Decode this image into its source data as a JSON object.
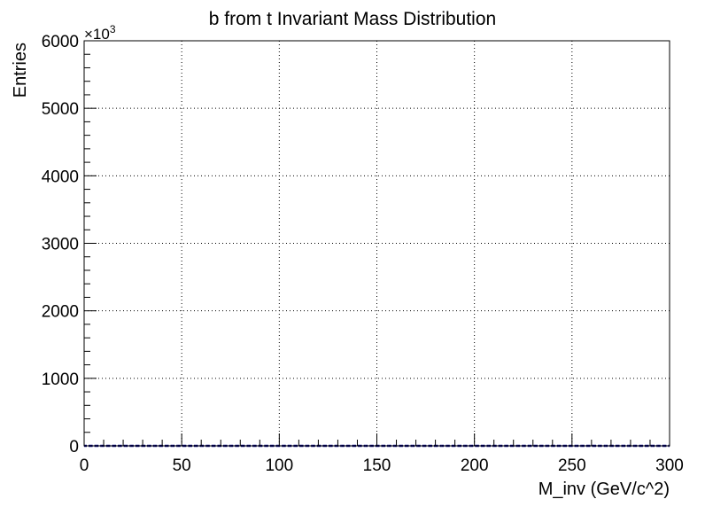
{
  "chart_data": {
    "type": "bar",
    "title": "b from t Invariant Mass Distribution",
    "xlabel": "M_inv (GeV/c^2)",
    "ylabel": "Entries",
    "y_multiplier_base": "×10",
    "y_multiplier_exponent": "3",
    "xlim": [
      0,
      300
    ],
    "ylim": [
      0,
      6000
    ],
    "x_ticks": [
      0,
      50,
      100,
      150,
      200,
      250,
      300
    ],
    "y_ticks": [
      0,
      1000,
      2000,
      3000,
      4000,
      5000,
      6000
    ],
    "x_tick_labels": [
      "0",
      "50",
      "100",
      "150",
      "200",
      "250",
      "300"
    ],
    "y_tick_labels": [
      "0",
      "1000",
      "2000",
      "3000",
      "4000",
      "5000",
      "6000"
    ],
    "grid": true,
    "bin_width": 3,
    "series": [
      {
        "color": "#000080",
        "bin_edges_start": 0,
        "values": [
          0,
          0,
          0,
          0,
          0,
          0,
          0,
          0,
          0,
          0,
          0,
          0,
          0,
          0,
          0,
          0,
          0,
          0,
          0,
          0,
          0,
          0,
          0,
          0,
          0,
          0,
          0,
          0,
          0,
          0,
          0,
          0,
          0,
          0,
          0,
          0,
          0,
          0,
          0,
          0,
          0,
          0,
          0,
          0,
          0,
          0,
          0,
          0,
          0,
          0,
          0,
          0,
          0,
          0,
          0,
          0,
          0,
          0,
          0,
          0,
          0,
          0,
          0,
          0,
          0,
          0,
          0,
          0,
          0,
          0,
          0,
          0,
          0,
          0,
          0,
          0,
          0,
          0,
          0,
          0,
          0,
          0,
          0,
          0,
          0,
          0,
          0,
          0,
          0,
          0,
          0,
          0,
          0,
          0,
          0,
          0,
          0,
          0,
          0,
          0
        ]
      }
    ]
  }
}
